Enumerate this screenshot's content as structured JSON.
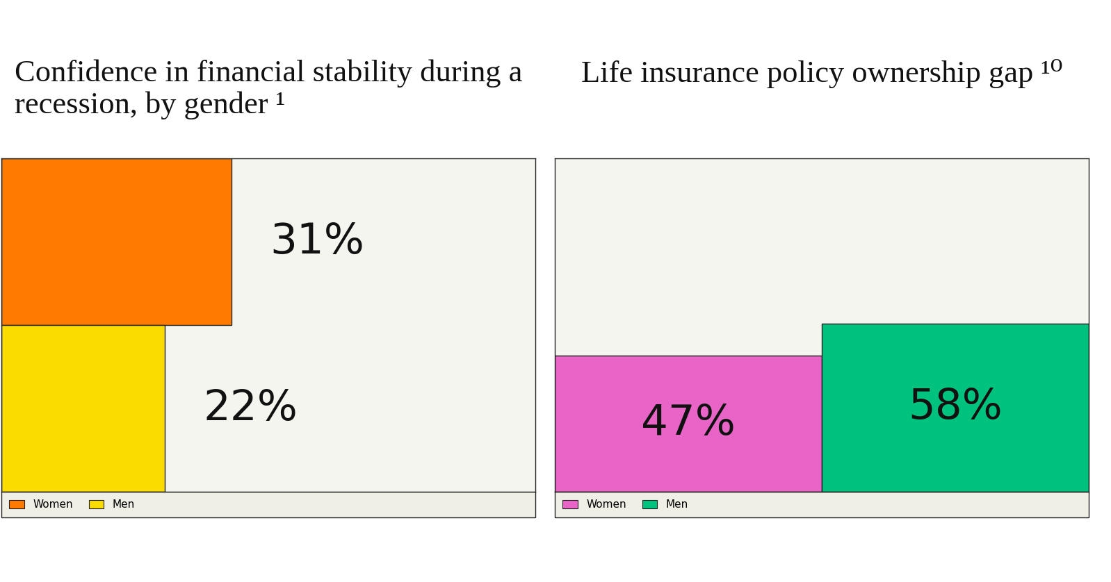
{
  "chart_data": [
    {
      "type": "bar",
      "title": "Confidence in financial stability during a recession, by gender ¹",
      "orientation": "horizontal",
      "categories": [
        "Women",
        "Men"
      ],
      "values": [
        31,
        22
      ],
      "value_labels": [
        "31%",
        "22%"
      ],
      "colors": [
        "#ff7b00",
        "#fadc00"
      ],
      "xlim": [
        0,
        72
      ],
      "data_labels": true,
      "tick_labels": false,
      "legend": "lower left"
    },
    {
      "type": "bar",
      "title": "Life insurance policy ownership gap ¹⁰",
      "categories": [
        "Women",
        "Men"
      ],
      "values": [
        47,
        58
      ],
      "value_labels": [
        "47%",
        "58%"
      ],
      "colors": [
        "#e864c6",
        "#00c27f"
      ],
      "ylim": [
        0,
        115
      ],
      "data_labels": true,
      "tick_labels": false,
      "legend": "lower left"
    }
  ]
}
